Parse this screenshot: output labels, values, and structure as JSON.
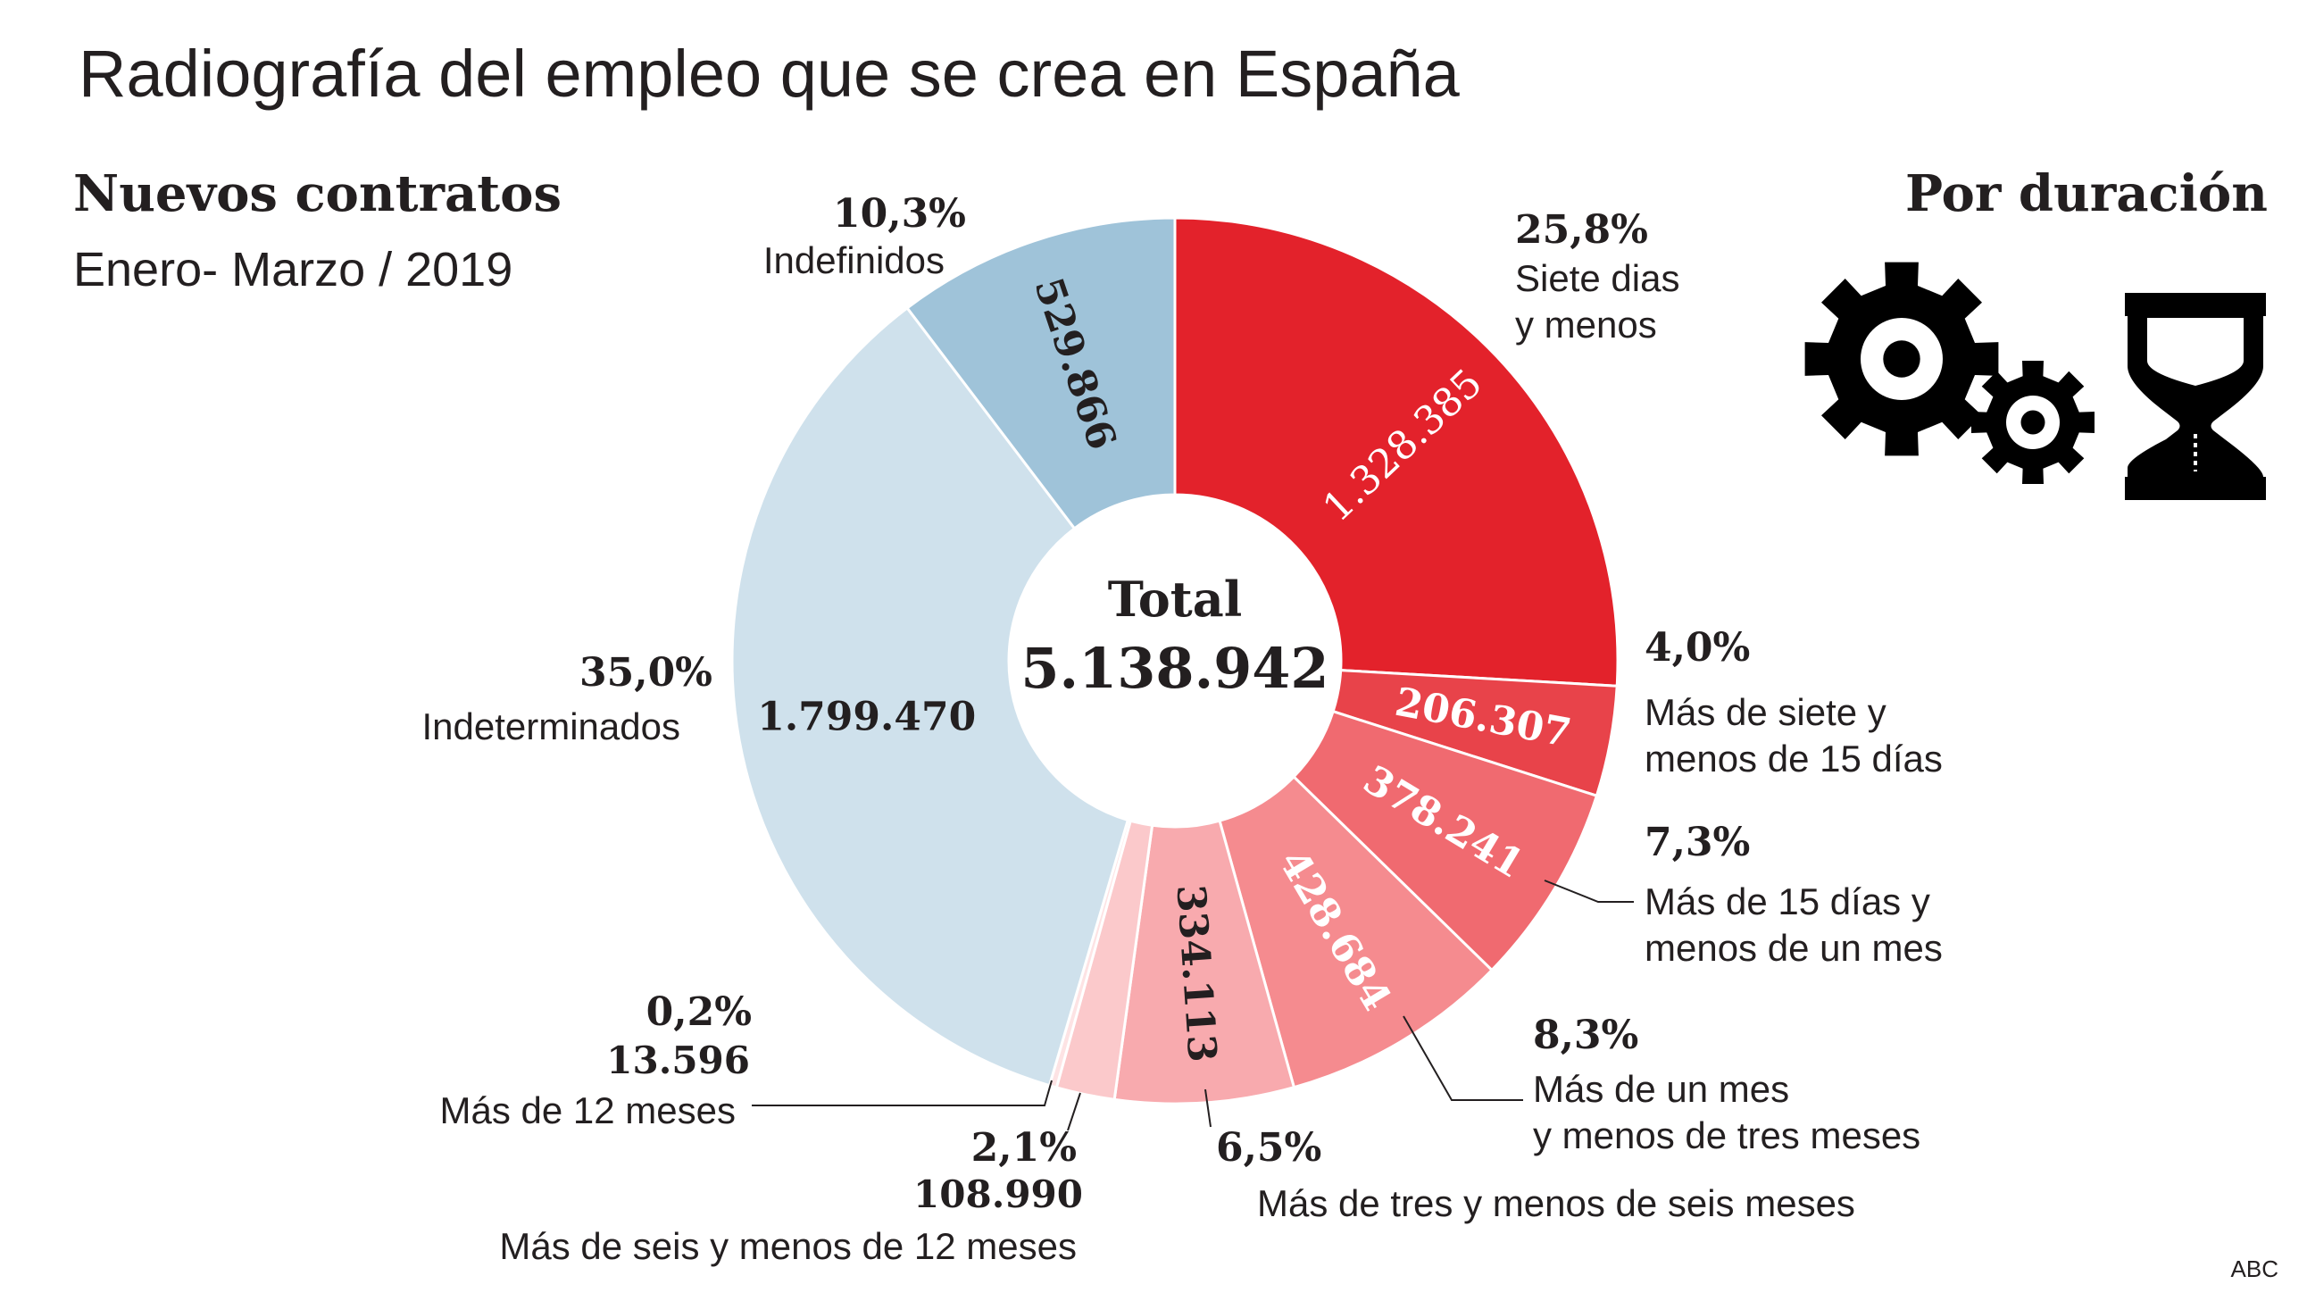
{
  "header": {
    "title": "Radiografía del empleo que se crea en España",
    "subtitle": "Nuevos contratos",
    "period": "Enero- Marzo / 2019",
    "section_label": "Por duración",
    "source": "ABC"
  },
  "center": {
    "label": "Total",
    "value": "5.138.942"
  },
  "icons": [
    "gear-large-icon",
    "gear-small-icon",
    "hourglass-icon"
  ],
  "colors": {
    "text": "#231f20",
    "leader": "#231f20",
    "ring_border": "#ffffff"
  },
  "chart_data": {
    "type": "pie",
    "variant": "donut",
    "total": 5138942,
    "total_label": "5.138.942",
    "slices": [
      {
        "key": "siete_dias",
        "label_lines": [
          "Siete dias",
          "y menos"
        ],
        "pct": "25,8%",
        "value": 1328385,
        "value_label": "1.328.385",
        "color": "#e3222b",
        "value_text_color": "#ffffff"
      },
      {
        "key": "siete_15",
        "label_lines": [
          "Más de siete y",
          "menos de 15 días"
        ],
        "pct": "4,0%",
        "value": 206307,
        "value_label": "206.307",
        "color": "#e8434a",
        "value_text_color": "#ffffff"
      },
      {
        "key": "15_mes",
        "label_lines": [
          "Más de 15 días y",
          "menos de un mes"
        ],
        "pct": "7,3%",
        "value": 378241,
        "value_label": "378.241",
        "color": "#f06a70",
        "value_text_color": "#ffffff"
      },
      {
        "key": "mes_tres",
        "label_lines": [
          "Más de un mes",
          "y menos de tres meses"
        ],
        "pct": "8,3%",
        "value": 428684,
        "value_label": "428.684",
        "color": "#f58b8f",
        "value_text_color": "#ffffff"
      },
      {
        "key": "tres_seis",
        "label_lines": [
          "Más de tres y menos de seis meses"
        ],
        "pct": "6,5%",
        "value": 334113,
        "value_label": "334.113",
        "color": "#f8aaae",
        "value_text_color": "#231f20"
      },
      {
        "key": "seis_12",
        "label_lines": [
          "Más de seis y menos de 12 meses"
        ],
        "pct": "2,1%",
        "value": 108990,
        "value_label": "108.990",
        "color": "#fbc9cb",
        "value_text_color": "#231f20"
      },
      {
        "key": "mas_12",
        "label_lines": [
          "Más de 12 meses"
        ],
        "pct": "0,2%",
        "value": 13596,
        "value_label": "13.596",
        "color": "#fde3e4",
        "value_text_color": "#231f20"
      },
      {
        "key": "indeterminados",
        "label_lines": [
          "Indeterminados"
        ],
        "pct": "35,0%",
        "value": 1799470,
        "value_label": "1.799.470",
        "color": "#cfe1ec",
        "value_text_color": "#231f20"
      },
      {
        "key": "indefinidos",
        "label_lines": [
          "Indefinidos"
        ],
        "pct": "10,3%",
        "value": 529866,
        "value_label": "529.866",
        "color": "#9fc3d9",
        "value_text_color": "#231f20"
      }
    ]
  }
}
